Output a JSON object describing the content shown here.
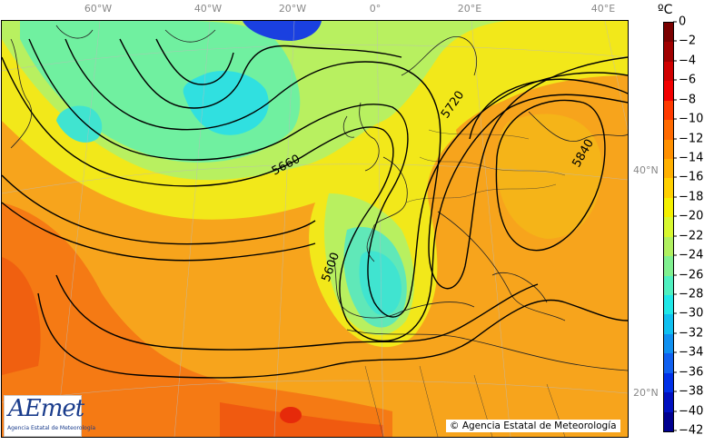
{
  "map": {
    "longitude_labels": [
      "60°W",
      "40°W",
      "20°W",
      "0°",
      "20°E",
      "40°E"
    ],
    "latitude_labels": [
      "40°N",
      "20°N"
    ],
    "contour_labels": [
      "5660",
      "5720",
      "5840",
      "5600"
    ],
    "unit": "ºC",
    "colorbar_ticks": [
      "0",
      "−2",
      "−4",
      "−6",
      "−8",
      "−10",
      "−12",
      "−14",
      "−16",
      "−18",
      "−20",
      "−22",
      "−24",
      "−26",
      "−28",
      "−30",
      "−32",
      "−34",
      "−36",
      "−38",
      "−40",
      "−42"
    ],
    "colorbar_colors": [
      "#7a0000",
      "#a00000",
      "#d00000",
      "#f20000",
      "#ff3a00",
      "#ff6a00",
      "#ff9000",
      "#ffb000",
      "#ffd000",
      "#f4f000",
      "#d8f830",
      "#b0f060",
      "#80f090",
      "#50f0c0",
      "#20e8e8",
      "#10c0f0",
      "#1090f0",
      "#1060f0",
      "#0030e8",
      "#0010c0",
      "#000090"
    ]
  },
  "logo": {
    "text": "AEmet",
    "subtitle": "Agencia Estatal de Meteorología"
  },
  "copyright": "© Agencia Estatal de Meteorología"
}
